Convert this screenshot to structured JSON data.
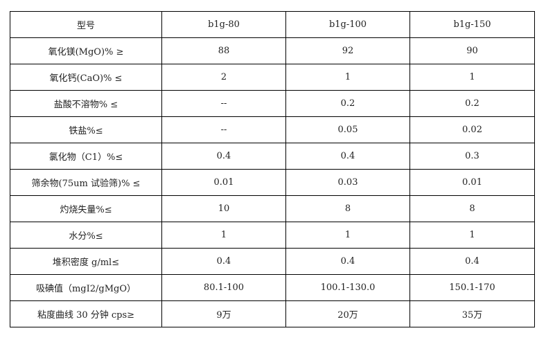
{
  "table": {
    "header": [
      "型号",
      "b1g-80",
      "b1g-100",
      "b1g-150"
    ],
    "rows": [
      [
        "氧化镁(MgO)% ≥",
        "88",
        "92",
        "90"
      ],
      [
        "氧化钙(CaO)% ≤",
        "2",
        "1",
        "1"
      ],
      [
        "盐酸不溶物% ≤",
        "--",
        "0.2",
        "0.2"
      ],
      [
        "铁盐%≤",
        "--",
        "0.05",
        "0.02"
      ],
      [
        "氯化物（C1）%≤",
        "0.4",
        "0.4",
        "0.3"
      ],
      [
        "筛余物(75um 试验筛)% ≤",
        "0.01",
        "0.03",
        "0.01"
      ],
      [
        "灼烧失量%≤",
        "10",
        "8",
        "8"
      ],
      [
        "水分%≤",
        "1",
        "1",
        "1"
      ],
      [
        "堆积密度 g/ml≤",
        "0.4",
        "0.4",
        "0.4"
      ],
      [
        "吸碘值（mgI2/gMgO）",
        "80.1-100",
        "100.1-130.0",
        "150.1-170"
      ],
      [
        "粘度曲线 30 分钟 cps≥",
        "9万",
        "20万",
        "35万"
      ]
    ]
  }
}
